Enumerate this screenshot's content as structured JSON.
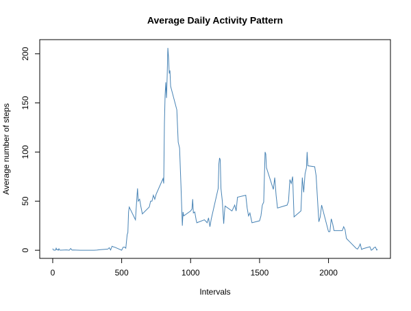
{
  "chart_data": {
    "type": "line",
    "title": "Average Daily Activity Pattern",
    "xlabel": "Intervals",
    "ylabel": "Average number of steps",
    "color": "#4682b4",
    "x": [
      0,
      5,
      10,
      15,
      20,
      25,
      30,
      35,
      40,
      45,
      50,
      55,
      100,
      110,
      120,
      130,
      140,
      150,
      200,
      230,
      300,
      320,
      340,
      400,
      410,
      420,
      430,
      440,
      450,
      500,
      510,
      520,
      530,
      540,
      545,
      550,
      555,
      600,
      610,
      615,
      620,
      630,
      640,
      650,
      700,
      710,
      720,
      730,
      740,
      750,
      800,
      805,
      810,
      815,
      820,
      825,
      830,
      835,
      840,
      845,
      850,
      855,
      900,
      910,
      920,
      930,
      940,
      945,
      950,
      1000,
      1010,
      1015,
      1020,
      1030,
      1040,
      1045,
      1100,
      1120,
      1130,
      1140,
      1150,
      1200,
      1205,
      1210,
      1215,
      1220,
      1230,
      1240,
      1245,
      1250,
      1300,
      1310,
      1320,
      1330,
      1340,
      1400,
      1410,
      1420,
      1430,
      1445,
      1500,
      1510,
      1520,
      1530,
      1540,
      1545,
      1550,
      1600,
      1610,
      1620,
      1630,
      1700,
      1710,
      1720,
      1730,
      1740,
      1750,
      1800,
      1810,
      1820,
      1830,
      1840,
      1845,
      1850,
      1900,
      1910,
      1930,
      1940,
      1950,
      2000,
      2010,
      2020,
      2030,
      2040,
      2100,
      2110,
      2120,
      2130,
      2200,
      2210,
      2220,
      2230,
      2240,
      2250,
      2300,
      2310,
      2320,
      2330,
      2340,
      2350,
      2355
    ],
    "values": [
      1.7,
      0.3,
      0.1,
      0.2,
      0.1,
      2.1,
      0.5,
      0.9,
      0,
      1.5,
      0.3,
      0.1,
      0.4,
      0.2,
      0,
      1.8,
      0.2,
      0.3,
      0,
      0,
      0,
      0.2,
      0.5,
      1.2,
      2.6,
      0.3,
      4.1,
      3.5,
      3.1,
      0,
      3,
      3.3,
      2.1,
      16,
      18,
      39,
      44,
      31,
      53,
      63,
      50,
      52,
      44,
      37,
      44,
      50,
      50,
      56,
      52,
      57,
      73,
      68,
      129,
      158,
      171,
      155,
      177,
      206,
      196,
      180,
      183,
      167,
      143,
      110,
      104,
      66,
      25,
      39,
      35,
      40,
      42,
      52,
      38,
      39,
      31,
      28,
      31,
      28,
      33,
      24,
      32,
      63,
      88,
      94,
      92,
      63,
      50,
      27,
      38,
      45,
      40,
      43,
      46,
      40,
      54,
      56,
      43,
      35,
      38,
      28,
      30,
      35,
      46,
      49,
      100,
      98,
      84,
      62,
      74,
      56,
      43,
      46,
      50,
      72,
      68,
      75,
      34,
      40,
      74,
      59,
      78,
      84,
      100,
      86,
      85,
      76,
      29,
      34,
      46,
      19,
      19,
      32,
      27,
      20,
      20,
      24,
      21,
      12,
      2,
      1.2,
      3.3,
      6.4,
      0.8,
      1.6,
      3.6,
      0,
      0.9,
      2.6,
      3.3,
      0.2,
      1.1
    ],
    "xlim": [
      -94.2,
      2449.2
    ],
    "ylim": [
      -8.25,
      214.42
    ],
    "xticks": [
      0,
      500,
      1000,
      1500,
      2000
    ],
    "yticks": [
      0,
      50,
      100,
      150,
      200
    ]
  }
}
